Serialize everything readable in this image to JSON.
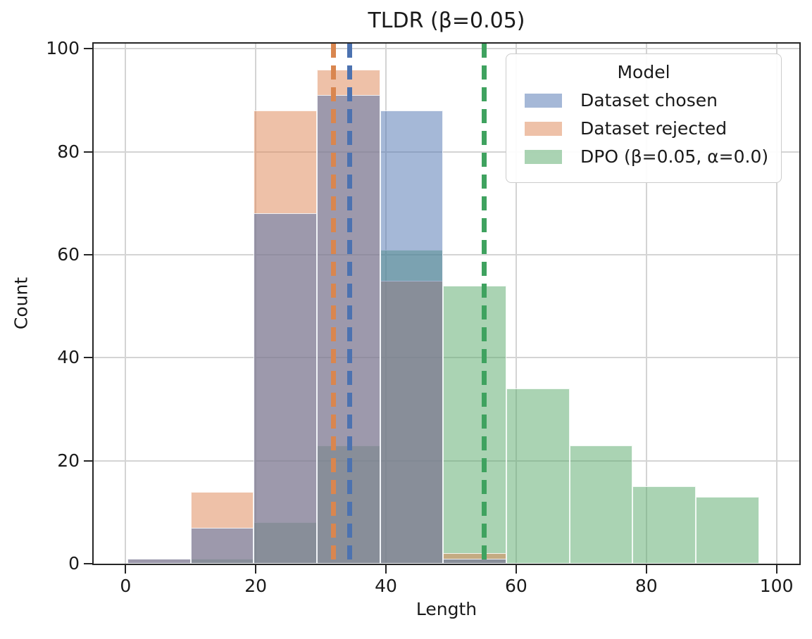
{
  "title": "TLDR (β=0.05)",
  "chart_data": {
    "type": "histogram",
    "title": "TLDR (β=0.05)",
    "xlabel": "Length",
    "ylabel": "Count",
    "xlim": [
      -4.9,
      103.5
    ],
    "ylim": [
      0,
      101
    ],
    "xticks": [
      0,
      20,
      40,
      60,
      80,
      100
    ],
    "yticks": [
      0,
      20,
      40,
      60,
      80,
      100
    ],
    "grid": true,
    "legend_position": "upper right",
    "legend_title": "Model",
    "bin_edges": [
      0.3,
      10.0,
      19.7,
      29.4,
      39.1,
      48.8,
      58.5,
      68.2,
      77.9,
      87.6,
      97.3
    ],
    "series": [
      {
        "key": "chosen",
        "name": "Dataset chosen",
        "color": "#4c72b0",
        "line_color": "#4c72b0",
        "alpha": 0.5,
        "z": 3,
        "counts": [
          1,
          7,
          68,
          91,
          88,
          1,
          0,
          0,
          0,
          0
        ],
        "mean": 34.4
      },
      {
        "key": "rejected",
        "name": "Dataset rejected",
        "color": "#dd8452",
        "line_color": "#d9864f",
        "alpha": 0.5,
        "z": 2,
        "counts": [
          1,
          14,
          88,
          96,
          55,
          2,
          0,
          0,
          0,
          0
        ],
        "mean": 31.9
      },
      {
        "key": "dpo",
        "name": "DPO (β=0.05, α=0.0)",
        "color": "#55a868",
        "line_color": "#3fa25f",
        "alpha": 0.5,
        "z": 1,
        "counts": [
          0,
          1,
          8,
          23,
          61,
          54,
          34,
          23,
          15,
          13
        ],
        "mean": 55.1
      }
    ],
    "style": {
      "grid_color": "#d4d4d4",
      "spine_color": "#262626",
      "background": "#ffffff",
      "bar_edge_color": "#ffffff"
    }
  }
}
